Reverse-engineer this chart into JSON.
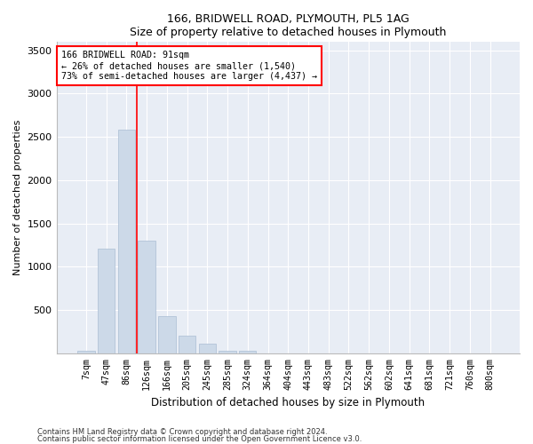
{
  "title1": "166, BRIDWELL ROAD, PLYMOUTH, PL5 1AG",
  "title2": "Size of property relative to detached houses in Plymouth",
  "xlabel": "Distribution of detached houses by size in Plymouth",
  "ylabel": "Number of detached properties",
  "bar_color": "#ccd9e8",
  "bar_edge_color": "#aabdd4",
  "bg_color": "#e8edf5",
  "categories": [
    "7sqm",
    "47sqm",
    "86sqm",
    "126sqm",
    "166sqm",
    "205sqm",
    "245sqm",
    "285sqm",
    "324sqm",
    "364sqm",
    "404sqm",
    "443sqm",
    "483sqm",
    "522sqm",
    "562sqm",
    "602sqm",
    "641sqm",
    "681sqm",
    "721sqm",
    "760sqm",
    "800sqm"
  ],
  "values": [
    30,
    1210,
    2580,
    1300,
    430,
    200,
    110,
    30,
    30,
    0,
    0,
    0,
    0,
    0,
    0,
    0,
    0,
    0,
    0,
    0,
    0
  ],
  "ylim": [
    0,
    3600
  ],
  "yticks": [
    0,
    500,
    1000,
    1500,
    2000,
    2500,
    3000,
    3500
  ],
  "vline_x_idx": 2.5,
  "annotation_text": "166 BRIDWELL ROAD: 91sqm\n← 26% of detached houses are smaller (1,540)\n73% of semi-detached houses are larger (4,437) →",
  "footer1": "Contains HM Land Registry data © Crown copyright and database right 2024.",
  "footer2": "Contains public sector information licensed under the Open Government Licence v3.0."
}
